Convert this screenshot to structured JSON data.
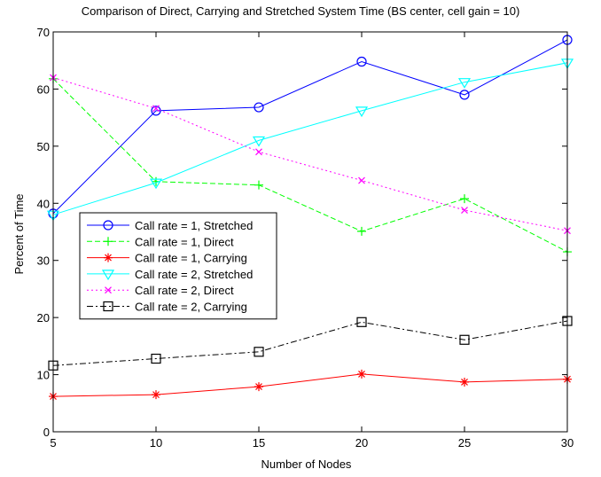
{
  "chart_data": {
    "type": "line",
    "title": "Comparison of Direct, Carrying and Stretched System Time (BS center, cell gain = 10)",
    "xlabel": "Number of Nodes",
    "ylabel": "Percent of Time",
    "xlim": [
      5,
      30
    ],
    "ylim": [
      0,
      70
    ],
    "x_ticks": [
      "5",
      "10",
      "15",
      "20",
      "25",
      "30"
    ],
    "y_ticks": [
      "0",
      "10",
      "20",
      "30",
      "40",
      "50",
      "60",
      "70"
    ],
    "x": [
      5,
      10,
      15,
      20,
      25,
      30
    ],
    "grid": false,
    "legend_position": "middle-left",
    "series": [
      {
        "name": "Call rate = 1, Stretched",
        "values": [
          38.2,
          56.2,
          56.8,
          64.8,
          59.0,
          68.6
        ],
        "color": "#0000ff",
        "dash": "solid",
        "marker": "circle"
      },
      {
        "name": "Call rate = 1, Direct",
        "values": [
          61.8,
          43.8,
          43.2,
          35.1,
          40.8,
          31.5
        ],
        "color": "#00ff00",
        "dash": "dashed",
        "marker": "plus"
      },
      {
        "name": "Call rate = 1, Carrying",
        "values": [
          6.2,
          6.5,
          7.9,
          10.1,
          8.7,
          9.2
        ],
        "color": "#ff0000",
        "dash": "solid",
        "marker": "star"
      },
      {
        "name": "Call rate = 2, Stretched",
        "values": [
          38.0,
          43.6,
          51.0,
          56.2,
          61.2,
          64.6
        ],
        "color": "#00ffff",
        "dash": "solid",
        "marker": "triangle-down"
      },
      {
        "name": "Call rate = 2, Direct",
        "values": [
          62.0,
          56.6,
          49.0,
          44.0,
          38.8,
          35.2
        ],
        "color": "#ff00ff",
        "dash": "dotted",
        "marker": "x"
      },
      {
        "name": "Call rate = 2, Carrying",
        "values": [
          11.6,
          12.8,
          14.0,
          19.2,
          16.1,
          19.4
        ],
        "color": "#000000",
        "dash": "dashdot",
        "marker": "square"
      }
    ]
  }
}
